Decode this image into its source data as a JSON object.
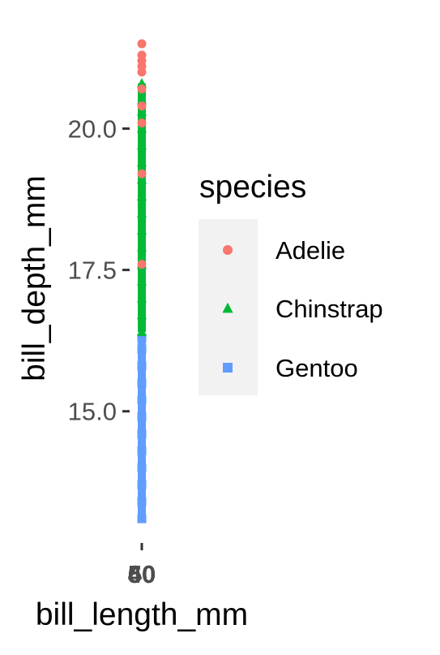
{
  "chart_data": {
    "type": "scatter",
    "title": "",
    "xlabel": "bill_length_mm",
    "ylabel": "bill_depth_mm",
    "x_tick_labels": [
      "40",
      "50",
      "60"
    ],
    "y_ticks": [
      15.0,
      17.5,
      20.0
    ],
    "y_tick_labels": [
      "15.0",
      "17.5",
      "20.0"
    ],
    "ylim": [
      12.8,
      21.7
    ],
    "x_axis_note": "x axis compressed to near-zero width; all points plotted at a single horizontal position",
    "grid": false,
    "legend": {
      "title": "species",
      "placement": "right",
      "entries": [
        {
          "name": "Adelie",
          "shape": "circle",
          "color": "#F8766D"
        },
        {
          "name": "Chinstrap",
          "shape": "triangle",
          "color": "#00BA38"
        },
        {
          "name": "Gentoo",
          "shape": "square",
          "color": "#619CFF"
        }
      ]
    },
    "series": [
      {
        "name": "Gentoo",
        "color": "#619CFF",
        "shape": "square",
        "y": [
          13.1,
          13.4,
          13.7,
          14.0,
          14.3,
          14.6,
          14.9,
          15.2,
          15.5,
          15.8,
          16.1,
          16.3
        ]
      },
      {
        "name": "Chinstrap",
        "color": "#00BA38",
        "shape": "triangle",
        "y": [
          16.4,
          16.7,
          17.0,
          17.3,
          17.6,
          17.9,
          18.2,
          18.5,
          18.8,
          19.1,
          19.4,
          19.7,
          20.0,
          20.3,
          20.5,
          20.8
        ]
      },
      {
        "name": "Adelie",
        "color": "#F8766D",
        "shape": "circle",
        "y": [
          17.6,
          19.2,
          20.1,
          20.4,
          20.7,
          21.0,
          21.1,
          21.2,
          21.3,
          21.5
        ]
      }
    ]
  }
}
